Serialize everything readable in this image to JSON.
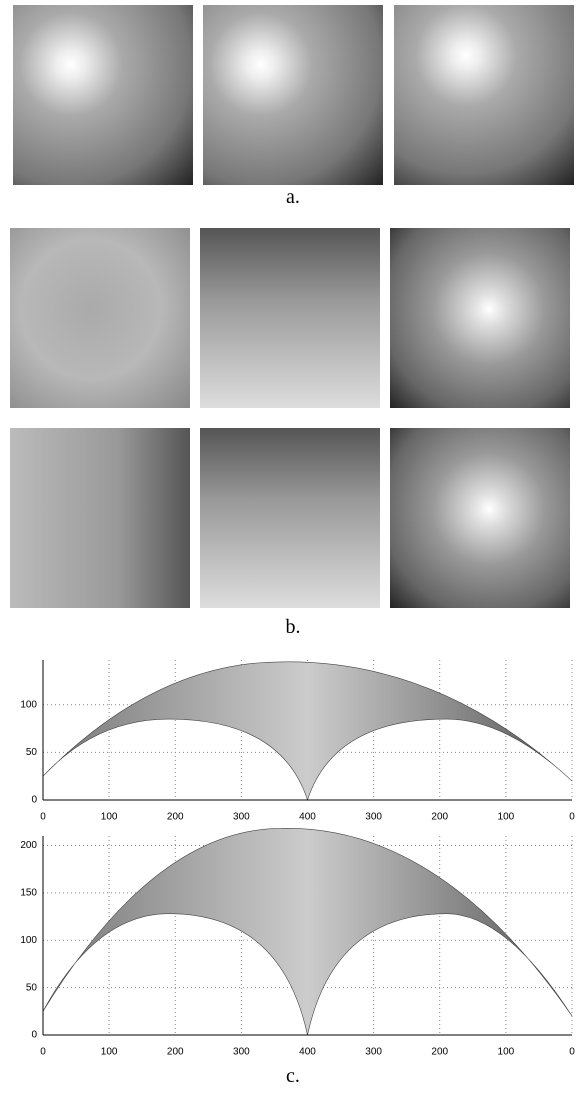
{
  "labels": [
    "a.",
    "b.",
    "c."
  ],
  "chart_data": [
    {
      "type": "surface",
      "xlim": [
        0,
        800
      ],
      "ylim": [
        0,
        147
      ],
      "grid": true,
      "xticks": [
        0,
        100,
        200,
        300,
        400,
        {
          "value": 500,
          "label": "300"
        },
        {
          "value": 600,
          "label": "200"
        },
        {
          "value": 700,
          "label": "100"
        },
        {
          "value": 800,
          "label": "0"
        }
      ],
      "yticks": [
        0,
        50,
        100
      ]
    },
    {
      "type": "surface",
      "xlim": [
        0,
        800
      ],
      "ylim": [
        0,
        210
      ],
      "grid": true,
      "xticks": [
        0,
        100,
        200,
        300,
        400,
        {
          "value": 500,
          "label": "300"
        },
        {
          "value": 600,
          "label": "200"
        },
        {
          "value": 700,
          "label": "100"
        },
        {
          "value": 800,
          "label": "0"
        }
      ],
      "yticks": [
        0,
        50,
        100,
        150,
        200
      ]
    }
  ]
}
